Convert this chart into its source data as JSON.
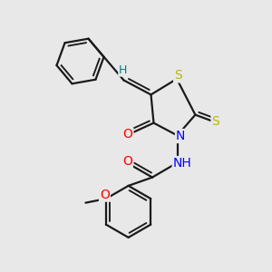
{
  "bg_color": "#e8e8e8",
  "bond_color": "#1a1a1a",
  "atom_colors": {
    "S": "#b8b800",
    "N": "#0000ff",
    "O": "#ff0000",
    "H": "#008080",
    "C": "#1a1a1a"
  },
  "bond_width": 1.6,
  "font_size_atom": 10,
  "title": ""
}
